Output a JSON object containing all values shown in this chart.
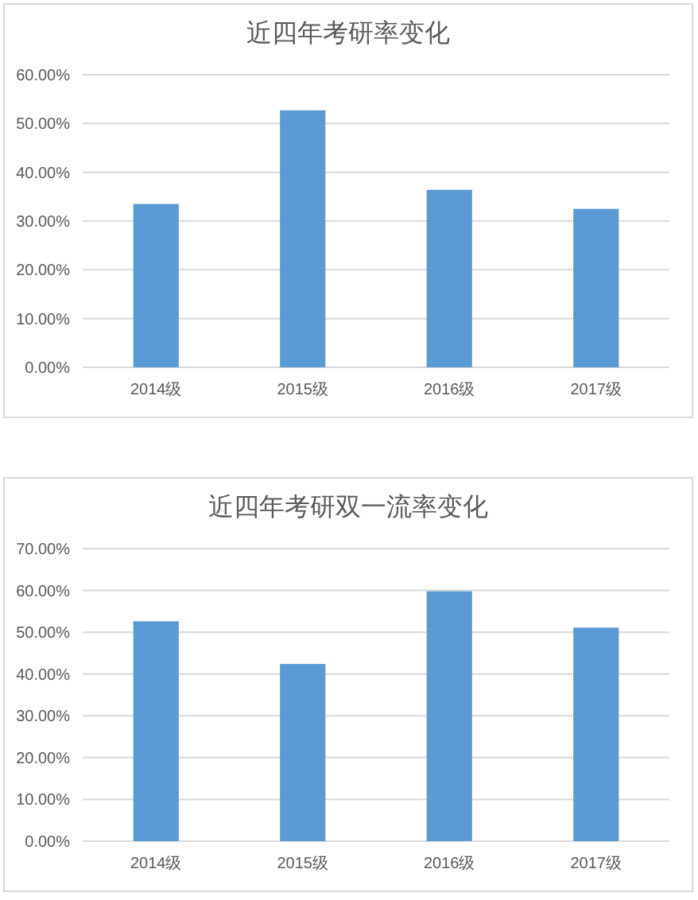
{
  "chart_data": [
    {
      "type": "bar",
      "title": "近四年考研率变化",
      "categories": [
        "2014级",
        "2015级",
        "2016级",
        "2017级"
      ],
      "values": [
        33.5,
        52.7,
        36.4,
        32.5
      ],
      "color": "#5b9bd5",
      "ylim": [
        0,
        60
      ],
      "yticks": [
        {
          "value": 0,
          "label": "0.00%"
        },
        {
          "value": 10,
          "label": "10.00%"
        },
        {
          "value": 20,
          "label": "20.00%"
        },
        {
          "value": 30,
          "label": "30.00%"
        },
        {
          "value": 40,
          "label": "40.00%"
        },
        {
          "value": 50,
          "label": "50.00%"
        },
        {
          "value": 60,
          "label": "60.00%"
        }
      ],
      "grid": "y"
    },
    {
      "type": "bar",
      "title": "近四年考研双一流率变化",
      "categories": [
        "2014级",
        "2015级",
        "2016级",
        "2017级"
      ],
      "values": [
        52.6,
        42.4,
        59.8,
        51.1
      ],
      "color": "#5b9bd5",
      "ylim": [
        0,
        70
      ],
      "yticks": [
        {
          "value": 0,
          "label": "0.00%"
        },
        {
          "value": 10,
          "label": "10.00%"
        },
        {
          "value": 20,
          "label": "20.00%"
        },
        {
          "value": 30,
          "label": "30.00%"
        },
        {
          "value": 40,
          "label": "40.00%"
        },
        {
          "value": 50,
          "label": "50.00%"
        },
        {
          "value": 60,
          "label": "60.00%"
        },
        {
          "value": 70,
          "label": "70.00%"
        }
      ],
      "grid": "y"
    }
  ]
}
